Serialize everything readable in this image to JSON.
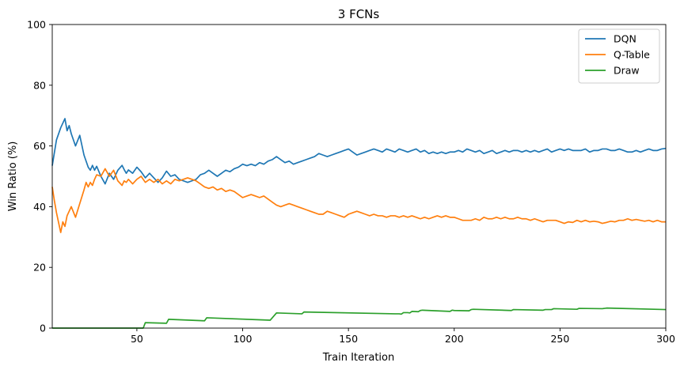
{
  "chart_data": {
    "type": "line",
    "title": "3 FCNs",
    "xlabel": "Train Iteration",
    "ylabel": "Win Ratio (%)",
    "xlim": [
      10,
      300
    ],
    "ylim": [
      0,
      100
    ],
    "xticks": [
      50,
      100,
      150,
      200,
      250,
      300
    ],
    "yticks": [
      0,
      20,
      40,
      60,
      80,
      100
    ],
    "grid": false,
    "legend_position": "top-right",
    "series": [
      {
        "name": "DQN",
        "color": "#1f77b4",
        "x": [
          10,
          12,
          14,
          16,
          17,
          18,
          19,
          21,
          23,
          25,
          27,
          28,
          29,
          30,
          31,
          33,
          35,
          37,
          39,
          41,
          43,
          44,
          45,
          46,
          48,
          50,
          52,
          54,
          56,
          58,
          60,
          62,
          64,
          66,
          68,
          70,
          72,
          74,
          76,
          78,
          80,
          82,
          84,
          86,
          88,
          90,
          92,
          94,
          96,
          98,
          100,
          102,
          104,
          106,
          108,
          110,
          112,
          114,
          116,
          118,
          120,
          122,
          124,
          126,
          128,
          130,
          132,
          134,
          136,
          138,
          140,
          142,
          144,
          146,
          148,
          150,
          152,
          154,
          156,
          158,
          160,
          162,
          164,
          166,
          168,
          170,
          172,
          174,
          176,
          178,
          180,
          182,
          184,
          186,
          188,
          190,
          192,
          194,
          196,
          198,
          200,
          202,
          204,
          206,
          208,
          210,
          212,
          214,
          216,
          218,
          220,
          222,
          224,
          226,
          228,
          230,
          232,
          234,
          236,
          238,
          240,
          242,
          244,
          246,
          248,
          250,
          252,
          254,
          256,
          258,
          260,
          262,
          264,
          266,
          268,
          270,
          272,
          274,
          276,
          278,
          280,
          282,
          284,
          286,
          288,
          290,
          292,
          294,
          296,
          298,
          300
        ],
        "values": [
          53.5,
          62,
          66,
          69,
          65,
          66.7,
          64,
          60,
          63.5,
          57,
          53,
          52,
          53.6,
          52,
          53.3,
          50,
          47.5,
          51,
          49,
          52,
          53.6,
          52.2,
          51,
          52.1,
          51,
          53,
          51.5,
          49.5,
          51,
          49.5,
          48,
          49.5,
          51.7,
          50,
          50.5,
          49,
          48.5,
          48,
          48.5,
          49,
          50.5,
          51,
          52,
          51,
          50,
          51,
          52,
          51.5,
          52.5,
          53,
          54,
          53.5,
          54,
          53.5,
          54.5,
          54,
          55,
          55.5,
          56.5,
          55.5,
          54.5,
          55,
          54,
          54.5,
          55,
          55.5,
          56,
          56.5,
          57.5,
          57,
          56.5,
          57,
          57.5,
          58,
          58.5,
          59,
          58,
          57,
          57.5,
          58,
          58.5,
          59,
          58.5,
          58,
          59,
          58.5,
          58,
          59,
          58.5,
          58,
          58.5,
          59,
          58,
          58.5,
          57.5,
          58,
          57.5,
          58,
          57.5,
          58,
          58,
          58.5,
          58,
          59,
          58.5,
          58,
          58.5,
          57.5,
          58,
          58.5,
          57.5,
          58,
          58.5,
          58,
          58.5,
          58.5,
          58,
          58.5,
          58,
          58.5,
          58,
          58.5,
          59,
          58,
          58.5,
          59,
          58.5,
          59,
          58.5,
          58.5,
          58.5,
          59,
          58,
          58.5,
          58.5,
          59,
          59,
          58.5,
          58.5,
          59,
          58.5,
          58,
          58,
          58.5,
          58,
          58.5,
          59,
          58.5,
          58.5,
          59,
          59.2
        ]
      },
      {
        "name": "Q-Table",
        "color": "#ff7f0e",
        "x": [
          10,
          11,
          12,
          14,
          15,
          16,
          17,
          19,
          21,
          23,
          25,
          26,
          27,
          28,
          29,
          30,
          31,
          33,
          35,
          37,
          39,
          41,
          43,
          44,
          45,
          46,
          48,
          50,
          52,
          54,
          56,
          58,
          60,
          62,
          64,
          66,
          68,
          70,
          72,
          74,
          76,
          78,
          80,
          82,
          84,
          86,
          88,
          90,
          92,
          94,
          96,
          98,
          100,
          102,
          104,
          106,
          108,
          110,
          112,
          114,
          116,
          118,
          120,
          122,
          124,
          126,
          128,
          130,
          132,
          134,
          136,
          138,
          140,
          142,
          144,
          146,
          148,
          150,
          152,
          154,
          156,
          158,
          160,
          162,
          164,
          166,
          168,
          170,
          172,
          174,
          176,
          178,
          180,
          182,
          184,
          186,
          188,
          190,
          192,
          194,
          196,
          198,
          200,
          202,
          204,
          206,
          208,
          210,
          212,
          214,
          216,
          218,
          220,
          222,
          224,
          226,
          228,
          230,
          232,
          234,
          236,
          238,
          240,
          242,
          244,
          246,
          248,
          250,
          252,
          254,
          256,
          258,
          260,
          262,
          264,
          266,
          268,
          270,
          272,
          274,
          276,
          278,
          280,
          282,
          284,
          286,
          288,
          290,
          292,
          294,
          296,
          298,
          300
        ],
        "values": [
          46.5,
          42,
          38,
          31.5,
          35,
          33.5,
          37,
          40,
          36.5,
          41,
          45.5,
          48,
          46.5,
          48,
          47,
          49,
          50.5,
          50,
          52.5,
          50,
          52,
          48.5,
          47,
          48.5,
          48,
          49,
          47.5,
          49,
          50,
          48,
          49,
          48,
          49,
          47.5,
          48.5,
          47.5,
          49,
          48.5,
          49,
          49.5,
          49,
          48.5,
          47.5,
          46.5,
          46,
          46.5,
          45.5,
          46,
          45,
          45.5,
          45,
          44,
          43,
          43.5,
          44,
          43.5,
          43,
          43.5,
          42.5,
          41.5,
          40.5,
          40,
          40.5,
          41,
          40.5,
          40,
          39.5,
          39,
          38.5,
          38,
          37.5,
          37.5,
          38.5,
          38,
          37.5,
          37,
          36.5,
          37.5,
          38,
          38.5,
          38,
          37.5,
          37,
          37.5,
          37,
          37,
          36.5,
          37,
          37,
          36.5,
          37,
          36.5,
          37,
          36.5,
          36,
          36.5,
          36,
          36.5,
          37,
          36.5,
          37,
          36.5,
          36.5,
          36,
          35.5,
          35.5,
          35.5,
          36,
          35.5,
          36.5,
          36,
          36,
          36.5,
          36,
          36.5,
          36,
          36,
          36.5,
          36,
          36,
          35.5,
          36,
          35.5,
          35,
          35.5,
          35.5,
          35.5,
          35,
          34.5,
          35,
          34.8,
          35.5,
          35,
          35.5,
          35,
          35.2,
          35,
          34.5,
          34.8,
          35.2,
          35,
          35.5,
          35.5,
          36,
          35.5,
          35.8,
          35.5,
          35.2,
          35.5,
          35,
          35.5,
          35,
          35
        ]
      },
      {
        "name": "Draw",
        "color": "#2ca02c",
        "x": [
          10,
          53,
          54,
          64,
          65,
          82,
          83,
          113,
          116,
          128,
          129,
          172,
          174,
          175,
          176,
          177,
          178,
          179,
          180,
          183,
          184,
          185,
          198,
          199,
          200,
          207,
          208,
          209,
          227,
          228,
          242,
          243,
          244,
          246,
          247,
          258,
          259,
          270,
          271,
          272,
          300
        ],
        "values": [
          0,
          0,
          1.8,
          1.6,
          2.9,
          2.4,
          3.4,
          2.6,
          5.0,
          4.7,
          5.3,
          4.7,
          4.7,
          4.6,
          5.1,
          5.1,
          5.1,
          5.0,
          5.5,
          5.4,
          5.8,
          5.9,
          5.5,
          5.9,
          5.8,
          5.7,
          6.1,
          6.2,
          5.8,
          6.1,
          5.9,
          6.1,
          6.1,
          6.1,
          6.4,
          6.2,
          6.5,
          6.4,
          6.5,
          6.6,
          6.1
        ]
      }
    ]
  }
}
